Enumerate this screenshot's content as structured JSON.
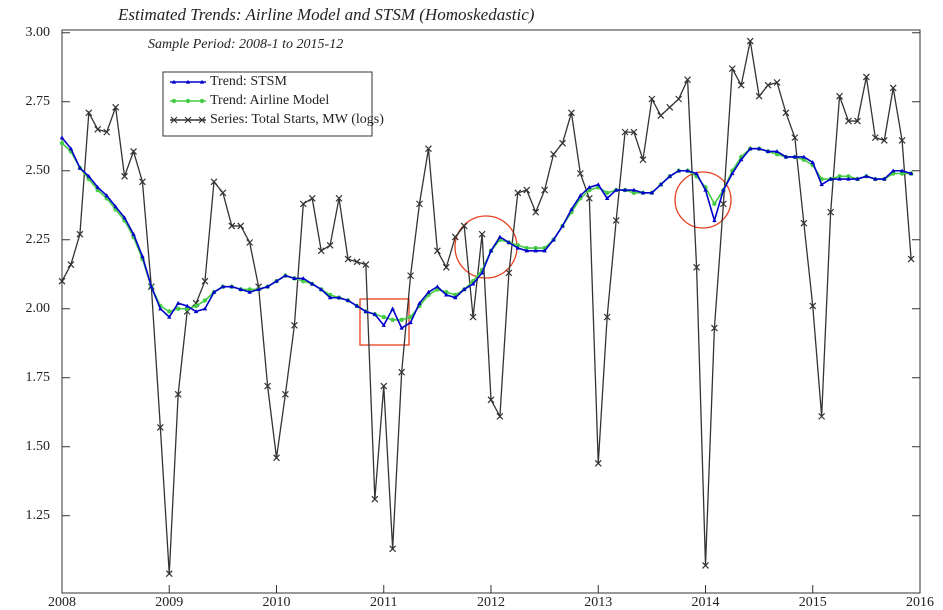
{
  "chart_data": {
    "type": "line",
    "title": "Estimated Trends: Airline Model and STSM (Homoskedastic)",
    "subtitle": "Sample Period: 2008-1 to 2015-12",
    "x": [
      2008,
      2008.083,
      2008.167,
      2008.25,
      2008.333,
      2008.417,
      2008.5,
      2008.583,
      2008.667,
      2008.75,
      2008.833,
      2008.917,
      2009,
      2009.083,
      2009.167,
      2009.25,
      2009.333,
      2009.417,
      2009.5,
      2009.583,
      2009.667,
      2009.75,
      2009.833,
      2009.917,
      2010,
      2010.083,
      2010.167,
      2010.25,
      2010.333,
      2010.417,
      2010.5,
      2010.583,
      2010.667,
      2010.75,
      2010.833,
      2010.917,
      2011,
      2011.083,
      2011.167,
      2011.25,
      2011.333,
      2011.417,
      2011.5,
      2011.583,
      2011.667,
      2011.75,
      2011.833,
      2011.917,
      2012,
      2012.083,
      2012.167,
      2012.25,
      2012.333,
      2012.417,
      2012.5,
      2012.583,
      2012.667,
      2012.75,
      2012.833,
      2012.917,
      2013,
      2013.083,
      2013.167,
      2013.25,
      2013.333,
      2013.417,
      2013.5,
      2013.583,
      2013.667,
      2013.75,
      2013.833,
      2013.917,
      2014,
      2014.083,
      2014.167,
      2014.25,
      2014.333,
      2014.417,
      2014.5,
      2014.583,
      2014.667,
      2014.75,
      2014.833,
      2014.917,
      2015,
      2015.083,
      2015.167,
      2015.25,
      2015.333,
      2015.417,
      2015.5,
      2015.583,
      2015.667,
      2015.75,
      2015.833,
      2015.917
    ],
    "series": [
      {
        "name": "Trend: STSM",
        "color": "#0000cc",
        "marker": "triangle",
        "values": [
          2.62,
          2.58,
          2.51,
          2.48,
          2.44,
          2.41,
          2.37,
          2.33,
          2.27,
          2.19,
          2.08,
          2.0,
          1.97,
          2.02,
          2.01,
          1.99,
          2.0,
          2.06,
          2.08,
          2.08,
          2.07,
          2.06,
          2.07,
          2.08,
          2.1,
          2.12,
          2.11,
          2.11,
          2.09,
          2.07,
          2.04,
          2.04,
          2.03,
          2.01,
          1.99,
          1.98,
          1.94,
          2.0,
          1.93,
          1.95,
          2.02,
          2.06,
          2.08,
          2.05,
          2.04,
          2.07,
          2.09,
          2.13,
          2.21,
          2.26,
          2.24,
          2.22,
          2.21,
          2.21,
          2.21,
          2.25,
          2.3,
          2.36,
          2.41,
          2.44,
          2.45,
          2.4,
          2.43,
          2.43,
          2.43,
          2.42,
          2.42,
          2.45,
          2.48,
          2.5,
          2.5,
          2.49,
          2.43,
          2.32,
          2.43,
          2.49,
          2.54,
          2.58,
          2.58,
          2.57,
          2.57,
          2.55,
          2.55,
          2.55,
          2.53,
          2.45,
          2.47,
          2.47,
          2.47,
          2.47,
          2.48,
          2.47,
          2.47,
          2.5,
          2.5,
          2.49
        ]
      },
      {
        "name": "Trend: Airline Model",
        "color": "#44cc44",
        "marker": "circle",
        "values": [
          2.6,
          2.57,
          2.51,
          2.47,
          2.43,
          2.4,
          2.36,
          2.32,
          2.26,
          2.18,
          2.08,
          2.01,
          1.99,
          2.0,
          2.0,
          2.01,
          2.03,
          2.06,
          2.08,
          2.08,
          2.07,
          2.07,
          2.07,
          2.08,
          2.1,
          2.12,
          2.11,
          2.1,
          2.09,
          2.07,
          2.05,
          2.04,
          2.03,
          2.01,
          1.99,
          1.98,
          1.97,
          1.96,
          1.96,
          1.97,
          2.01,
          2.05,
          2.07,
          2.06,
          2.05,
          2.07,
          2.1,
          2.14,
          2.21,
          2.25,
          2.24,
          2.23,
          2.22,
          2.22,
          2.22,
          2.25,
          2.3,
          2.35,
          2.4,
          2.43,
          2.44,
          2.42,
          2.43,
          2.43,
          2.42,
          2.42,
          2.42,
          2.45,
          2.48,
          2.5,
          2.5,
          2.48,
          2.44,
          2.38,
          2.43,
          2.5,
          2.55,
          2.58,
          2.58,
          2.57,
          2.56,
          2.55,
          2.55,
          2.54,
          2.52,
          2.47,
          2.47,
          2.48,
          2.48,
          2.47,
          2.48,
          2.47,
          2.47,
          2.49,
          2.49,
          2.49
        ]
      },
      {
        "name": "Series: Total Starts, MW (logs)",
        "color": "#333333",
        "marker": "cross",
        "values": [
          2.1,
          2.16,
          2.27,
          2.71,
          2.65,
          2.64,
          2.73,
          2.48,
          2.57,
          2.46,
          2.08,
          1.57,
          1.04,
          1.69,
          1.99,
          2.02,
          2.1,
          2.46,
          2.42,
          2.3,
          2.3,
          2.24,
          2.08,
          1.72,
          1.46,
          1.69,
          1.94,
          2.38,
          2.4,
          2.21,
          2.23,
          2.4,
          2.18,
          2.17,
          2.16,
          1.31,
          1.72,
          1.13,
          1.77,
          2.12,
          2.38,
          2.58,
          2.21,
          2.15,
          2.26,
          2.3,
          1.97,
          2.27,
          1.67,
          1.61,
          2.13,
          2.42,
          2.43,
          2.35,
          2.43,
          2.56,
          2.6,
          2.71,
          2.49,
          2.4,
          1.44,
          1.97,
          2.32,
          2.64,
          2.64,
          2.54,
          2.76,
          2.7,
          2.73,
          2.76,
          2.83,
          2.15,
          1.07,
          1.93,
          2.38,
          2.87,
          2.81,
          2.97,
          2.77,
          2.81,
          2.82,
          2.71,
          2.62,
          2.31,
          2.01,
          1.61,
          2.35,
          2.77,
          2.68,
          2.68,
          2.84,
          2.62,
          2.61,
          2.8,
          2.61,
          2.18
        ]
      }
    ],
    "xlim": [
      2008,
      2016
    ],
    "xticks": [
      2008,
      2009,
      2010,
      2011,
      2012,
      2013,
      2014,
      2015,
      2016
    ],
    "ylim": [
      0.97,
      3.01
    ],
    "yticks": [
      {
        "value": 1.25,
        "label": "1.25"
      },
      {
        "value": 1.5,
        "label": "1.50"
      },
      {
        "value": 1.75,
        "label": "1.75"
      },
      {
        "value": 2,
        "label": "2.00"
      },
      {
        "value": 2.25,
        "label": "2.25"
      },
      {
        "value": 2.5,
        "label": "2.50"
      },
      {
        "value": 2.75,
        "label": "2.75"
      },
      {
        "value": 3,
        "label": "3.00"
      }
    ],
    "legend": "upper left"
  }
}
